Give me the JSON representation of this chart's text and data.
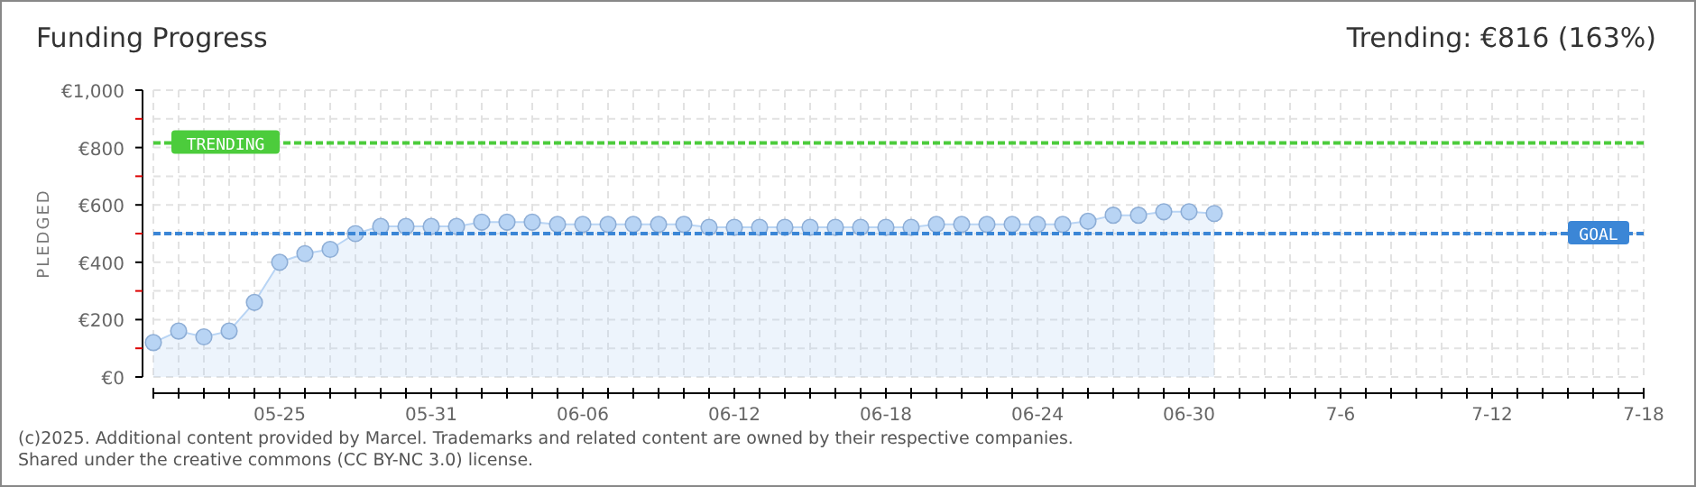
{
  "chart_data": {
    "type": "area",
    "title": "Funding Progress",
    "subtitle": "Trending: €816 (163%)",
    "ylabel": "PLEDGED",
    "x": [
      "2025-05-20",
      "2025-05-21",
      "2025-05-22",
      "2025-05-23",
      "2025-05-24",
      "2025-05-25",
      "2025-05-26",
      "2025-05-27",
      "2025-05-28",
      "2025-05-29",
      "2025-05-30",
      "2025-05-31",
      "2025-06-01",
      "2025-06-02",
      "2025-06-03",
      "2025-06-04",
      "2025-06-05",
      "2025-06-06",
      "2025-06-07",
      "2025-06-08",
      "2025-06-09",
      "2025-06-10",
      "2025-06-11",
      "2025-06-12",
      "2025-06-13",
      "2025-06-14",
      "2025-06-15",
      "2025-06-16",
      "2025-06-17",
      "2025-06-18",
      "2025-06-19",
      "2025-06-20",
      "2025-06-21",
      "2025-06-22",
      "2025-06-23",
      "2025-06-24",
      "2025-06-25",
      "2025-06-26",
      "2025-06-27",
      "2025-06-28",
      "2025-06-29",
      "2025-06-30",
      "2025-07-01"
    ],
    "series": [
      {
        "color": "#b8d4f4",
        "values": [
          120,
          160,
          140,
          160,
          260,
          400,
          430,
          445,
          500,
          525,
          525,
          525,
          525,
          540,
          540,
          540,
          532,
          532,
          532,
          532,
          532,
          532,
          522,
          522,
          522,
          522,
          522,
          522,
          522,
          522,
          522,
          532,
          532,
          532,
          532,
          532,
          532,
          543,
          564,
          564,
          576,
          576,
          570
        ]
      }
    ],
    "xlim": [
      "2025-05-20",
      "2025-07-18"
    ],
    "xticks": [
      {
        "value": "2025-05-20",
        "label": null
      },
      {
        "value": "2025-05-21",
        "label": null
      },
      {
        "value": "2025-05-22",
        "label": null
      },
      {
        "value": "2025-05-23",
        "label": null
      },
      {
        "value": "2025-05-24",
        "label": null
      },
      {
        "value": "2025-05-25",
        "label": "05-25"
      },
      {
        "value": "2025-05-26",
        "label": null
      },
      {
        "value": "2025-05-27",
        "label": null
      },
      {
        "value": "2025-05-28",
        "label": null
      },
      {
        "value": "2025-05-29",
        "label": null
      },
      {
        "value": "2025-05-30",
        "label": null
      },
      {
        "value": "2025-05-31",
        "label": "05-31"
      },
      {
        "value": "2025-06-01",
        "label": null
      },
      {
        "value": "2025-06-02",
        "label": null
      },
      {
        "value": "2025-06-03",
        "label": null
      },
      {
        "value": "2025-06-04",
        "label": null
      },
      {
        "value": "2025-06-05",
        "label": null
      },
      {
        "value": "2025-06-06",
        "label": "06-06"
      },
      {
        "value": "2025-06-07",
        "label": null
      },
      {
        "value": "2025-06-08",
        "label": null
      },
      {
        "value": "2025-06-09",
        "label": null
      },
      {
        "value": "2025-06-10",
        "label": null
      },
      {
        "value": "2025-06-11",
        "label": null
      },
      {
        "value": "2025-06-12",
        "label": "06-12"
      },
      {
        "value": "2025-06-13",
        "label": null
      },
      {
        "value": "2025-06-14",
        "label": null
      },
      {
        "value": "2025-06-15",
        "label": null
      },
      {
        "value": "2025-06-16",
        "label": null
      },
      {
        "value": "2025-06-17",
        "label": null
      },
      {
        "value": "2025-06-18",
        "label": "06-18"
      },
      {
        "value": "2025-06-19",
        "label": null
      },
      {
        "value": "2025-06-20",
        "label": null
      },
      {
        "value": "2025-06-21",
        "label": null
      },
      {
        "value": "2025-06-22",
        "label": null
      },
      {
        "value": "2025-06-23",
        "label": null
      },
      {
        "value": "2025-06-24",
        "label": "06-24"
      },
      {
        "value": "2025-06-25",
        "label": null
      },
      {
        "value": "2025-06-26",
        "label": null
      },
      {
        "value": "2025-06-27",
        "label": null
      },
      {
        "value": "2025-06-28",
        "label": null
      },
      {
        "value": "2025-06-29",
        "label": null
      },
      {
        "value": "2025-06-30",
        "label": "06-30"
      },
      {
        "value": "2025-07-01",
        "label": null
      },
      {
        "value": "2025-07-02",
        "label": null
      },
      {
        "value": "2025-07-03",
        "label": null
      },
      {
        "value": "2025-07-04",
        "label": null
      },
      {
        "value": "2025-07-05",
        "label": null
      },
      {
        "value": "2025-07-06",
        "label": "7-6"
      },
      {
        "value": "2025-07-07",
        "label": null
      },
      {
        "value": "2025-07-08",
        "label": null
      },
      {
        "value": "2025-07-09",
        "label": null
      },
      {
        "value": "2025-07-10",
        "label": null
      },
      {
        "value": "2025-07-11",
        "label": null
      },
      {
        "value": "2025-07-12",
        "label": "7-12"
      },
      {
        "value": "2025-07-13",
        "label": null
      },
      {
        "value": "2025-07-14",
        "label": null
      },
      {
        "value": "2025-07-15",
        "label": null
      },
      {
        "value": "2025-07-16",
        "label": null
      },
      {
        "value": "2025-07-17",
        "label": null
      },
      {
        "value": "2025-07-18",
        "label": "7-18"
      }
    ],
    "ylim": [
      0,
      1000
    ],
    "yticks": [
      {
        "value": 0,
        "label": "€0"
      },
      {
        "value": 100,
        "label": null
      },
      {
        "value": 200,
        "label": "€200"
      },
      {
        "value": 300,
        "label": null
      },
      {
        "value": 400,
        "label": "€400"
      },
      {
        "value": 500,
        "label": null
      },
      {
        "value": 600,
        "label": "€600"
      },
      {
        "value": 700,
        "label": null
      },
      {
        "value": 800,
        "label": "€800"
      },
      {
        "value": 900,
        "label": null
      },
      {
        "value": 1000,
        "label": "€1,000"
      }
    ],
    "grid": true,
    "marker": "circle",
    "ref_lines": [
      {
        "axis": "y",
        "value": 816,
        "label": "TRENDING",
        "color": "#4ccc3c",
        "line_style": "dashed"
      },
      {
        "axis": "y",
        "value": 500,
        "label": "GOAL",
        "color": "#3b86d6",
        "line_style": "dashed"
      }
    ],
    "annotations": [
      "(c)2025. Additional content provided by Marcel. Trademarks and related content are owned by their respective companies.",
      "Shared under the creative commons (CC BY-NC 3.0) license."
    ]
  }
}
